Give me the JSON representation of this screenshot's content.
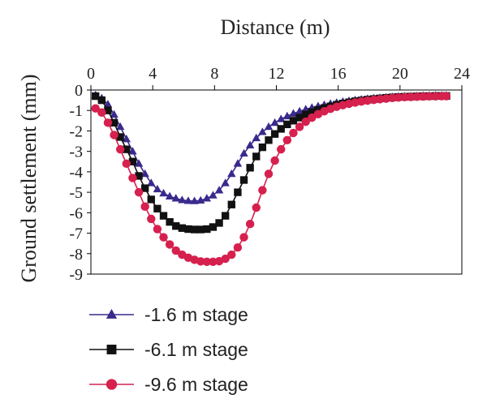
{
  "chart_data": {
    "type": "line",
    "xlabel": "Distance (m)",
    "ylabel": "Ground settlement (mm)",
    "xlim": [
      0,
      24
    ],
    "ylim": [
      -9,
      0
    ],
    "x_ticks": [
      "0",
      "4",
      "8",
      "12",
      "16",
      "20",
      "24"
    ],
    "y_ticks": [
      "0",
      "-1",
      "-2",
      "-3",
      "-4",
      "-5",
      "-6",
      "-7",
      "-8",
      "-9"
    ],
    "x_axis_position": "top",
    "grid": false,
    "legend_position": "bottom-left",
    "x": [
      0.3,
      0.7,
      1.1,
      1.5,
      1.9,
      2.3,
      2.7,
      3.1,
      3.5,
      3.9,
      4.3,
      4.7,
      5.1,
      5.5,
      5.9,
      6.3,
      6.7,
      7.1,
      7.5,
      7.9,
      8.3,
      8.7,
      9.1,
      9.5,
      9.9,
      10.3,
      10.7,
      11.1,
      11.5,
      11.9,
      12.3,
      12.7,
      13.1,
      13.5,
      13.9,
      14.3,
      14.7,
      15.1,
      15.5,
      15.9,
      16.3,
      16.7,
      17.1,
      17.5,
      17.9,
      18.3,
      18.7,
      19.1,
      19.5,
      19.9,
      20.3,
      20.7,
      21.1,
      21.5,
      21.9,
      22.3,
      22.7,
      23.0
    ],
    "series": [
      {
        "name": "-1.6 m stage",
        "color": "#3a2a8c",
        "marker": "triangle",
        "values": [
          -0.25,
          -0.4,
          -0.7,
          -1.2,
          -1.8,
          -2.4,
          -3.0,
          -3.6,
          -4.1,
          -4.55,
          -4.85,
          -5.05,
          -5.2,
          -5.3,
          -5.38,
          -5.42,
          -5.43,
          -5.4,
          -5.3,
          -5.15,
          -4.9,
          -4.55,
          -4.1,
          -3.6,
          -3.1,
          -2.7,
          -2.35,
          -2.05,
          -1.8,
          -1.6,
          -1.42,
          -1.28,
          -1.15,
          -1.04,
          -0.94,
          -0.86,
          -0.79,
          -0.73,
          -0.67,
          -0.62,
          -0.57,
          -0.53,
          -0.49,
          -0.46,
          -0.43,
          -0.4,
          -0.38,
          -0.36,
          -0.34,
          -0.32,
          -0.31,
          -0.3,
          -0.29,
          -0.28,
          -0.28,
          -0.27,
          -0.27,
          -0.27
        ]
      },
      {
        "name": "-6.1 m stage",
        "color": "#111111",
        "marker": "square",
        "values": [
          -0.3,
          -0.5,
          -1.0,
          -1.6,
          -2.3,
          -2.9,
          -3.5,
          -4.2,
          -4.8,
          -5.35,
          -5.8,
          -6.15,
          -6.45,
          -6.65,
          -6.75,
          -6.8,
          -6.82,
          -6.82,
          -6.8,
          -6.7,
          -6.5,
          -6.15,
          -5.6,
          -5.0,
          -4.4,
          -3.8,
          -3.25,
          -2.8,
          -2.45,
          -2.15,
          -1.9,
          -1.68,
          -1.5,
          -1.35,
          -1.2,
          -1.08,
          -0.97,
          -0.88,
          -0.8,
          -0.72,
          -0.66,
          -0.6,
          -0.55,
          -0.51,
          -0.47,
          -0.44,
          -0.41,
          -0.38,
          -0.36,
          -0.34,
          -0.33,
          -0.32,
          -0.31,
          -0.3,
          -0.3,
          -0.29,
          -0.29,
          -0.29
        ]
      },
      {
        "name": "-9.6 m stage",
        "color": "#d6204e",
        "marker": "circle",
        "values": [
          -0.9,
          -1.1,
          -1.6,
          -2.2,
          -2.9,
          -3.6,
          -4.3,
          -5.0,
          -5.7,
          -6.3,
          -6.8,
          -7.2,
          -7.55,
          -7.85,
          -8.05,
          -8.2,
          -8.3,
          -8.38,
          -8.4,
          -8.4,
          -8.37,
          -8.25,
          -8.05,
          -7.7,
          -7.2,
          -6.55,
          -5.75,
          -4.9,
          -4.1,
          -3.45,
          -2.9,
          -2.45,
          -2.1,
          -1.8,
          -1.55,
          -1.35,
          -1.18,
          -1.04,
          -0.92,
          -0.82,
          -0.74,
          -0.67,
          -0.61,
          -0.56,
          -0.52,
          -0.48,
          -0.45,
          -0.42,
          -0.39,
          -0.37,
          -0.35,
          -0.34,
          -0.33,
          -0.32,
          -0.31,
          -0.31,
          -0.3,
          -0.3
        ]
      }
    ]
  }
}
